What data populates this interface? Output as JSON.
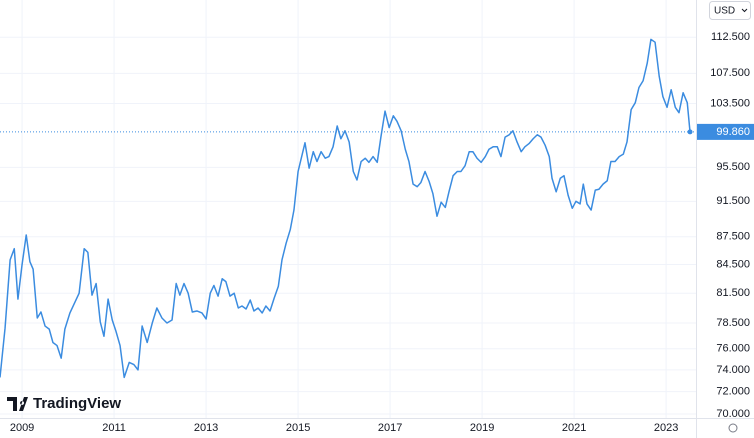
{
  "chart_data": {
    "type": "line",
    "currency": "USD",
    "watermark": "TradingView",
    "color": "#3b8ce0",
    "log_scale": true,
    "grid": true,
    "last_value_label": "99.860",
    "x": [
      2008.52,
      2008.63,
      2008.74,
      2008.83,
      2008.91,
      2009.0,
      2009.09,
      2009.17,
      2009.24,
      2009.33,
      2009.41,
      2009.5,
      2009.59,
      2009.67,
      2009.76,
      2009.85,
      2009.93,
      2010.04,
      2010.13,
      2010.24,
      2010.35,
      2010.43,
      2010.52,
      2010.61,
      2010.7,
      2010.78,
      2010.87,
      2010.96,
      2011.04,
      2011.13,
      2011.22,
      2011.33,
      2011.43,
      2011.52,
      2011.61,
      2011.72,
      2011.83,
      2011.93,
      2012.04,
      2012.15,
      2012.26,
      2012.35,
      2012.43,
      2012.52,
      2012.61,
      2012.7,
      2012.8,
      2012.91,
      2013.0,
      2013.09,
      2013.17,
      2013.26,
      2013.35,
      2013.43,
      2013.52,
      2013.61,
      2013.7,
      2013.78,
      2013.87,
      2013.96,
      2014.04,
      2014.13,
      2014.22,
      2014.3,
      2014.39,
      2014.48,
      2014.57,
      2014.65,
      2014.74,
      2014.83,
      2014.91,
      2015.0,
      2015.15,
      2015.24,
      2015.33,
      2015.41,
      2015.5,
      2015.59,
      2015.67,
      2015.76,
      2015.85,
      2015.93,
      2016.02,
      2016.11,
      2016.2,
      2016.28,
      2016.37,
      2016.46,
      2016.54,
      2016.63,
      2016.72,
      2016.8,
      2016.89,
      2016.98,
      2017.07,
      2017.15,
      2017.24,
      2017.33,
      2017.41,
      2017.5,
      2017.59,
      2017.67,
      2017.76,
      2017.85,
      2017.93,
      2018.02,
      2018.11,
      2018.2,
      2018.28,
      2018.37,
      2018.46,
      2018.54,
      2018.63,
      2018.72,
      2018.8,
      2018.89,
      2018.98,
      2019.07,
      2019.15,
      2019.24,
      2019.33,
      2019.41,
      2019.5,
      2019.59,
      2019.67,
      2019.76,
      2019.85,
      2019.93,
      2020.02,
      2020.11,
      2020.2,
      2020.28,
      2020.37,
      2020.46,
      2020.52,
      2020.61,
      2020.7,
      2020.78,
      2020.87,
      2020.96,
      2021.04,
      2021.13,
      2021.2,
      2021.28,
      2021.37,
      2021.46,
      2021.54,
      2021.63,
      2021.72,
      2021.8,
      2021.89,
      2021.98,
      2022.07,
      2022.15,
      2022.24,
      2022.33,
      2022.41,
      2022.5,
      2022.59,
      2022.67,
      2022.76,
      2022.85,
      2022.93,
      2023.02,
      2023.11,
      2023.2,
      2023.28,
      2023.37,
      2023.46,
      2023.52
    ],
    "values": [
      73.3,
      78.0,
      85.0,
      86.2,
      80.9,
      84.5,
      87.7,
      84.8,
      84.0,
      79.0,
      79.6,
      78.2,
      77.9,
      76.6,
      76.3,
      75.1,
      77.9,
      79.5,
      80.4,
      81.5,
      86.2,
      85.8,
      81.3,
      82.5,
      78.6,
      77.2,
      80.9,
      78.8,
      77.7,
      76.3,
      73.3,
      74.7,
      74.5,
      74.0,
      78.2,
      76.6,
      78.5,
      80.0,
      79.0,
      78.5,
      78.8,
      82.5,
      81.3,
      82.5,
      81.5,
      79.6,
      79.7,
      79.5,
      78.9,
      81.5,
      82.3,
      81.2,
      83.0,
      82.7,
      81.2,
      81.5,
      80.0,
      80.2,
      79.9,
      80.8,
      79.7,
      80.0,
      79.5,
      80.2,
      79.7,
      81.0,
      82.2,
      85.0,
      86.8,
      88.3,
      90.5,
      95.0,
      98.5,
      95.4,
      97.4,
      96.2,
      97.4,
      96.6,
      96.8,
      98.0,
      100.6,
      99.0,
      100.0,
      98.6,
      95.0,
      94.0,
      96.2,
      96.6,
      96.1,
      96.8,
      96.1,
      99.2,
      102.5,
      100.4,
      101.9,
      101.2,
      100.0,
      97.7,
      96.2,
      93.5,
      93.2,
      93.7,
      95.0,
      93.8,
      92.4,
      89.8,
      91.4,
      90.8,
      92.6,
      94.5,
      95.0,
      95.0,
      95.7,
      97.4,
      97.4,
      96.6,
      96.1,
      96.8,
      97.7,
      98.0,
      98.0,
      96.8,
      99.2,
      99.5,
      100.0,
      98.6,
      97.4,
      98.0,
      98.4,
      99.0,
      99.5,
      99.2,
      98.2,
      96.8,
      94.2,
      92.6,
      94.2,
      94.5,
      92.2,
      90.7,
      91.5,
      91.2,
      93.5,
      91.2,
      90.5,
      92.8,
      92.9,
      93.5,
      93.9,
      96.2,
      96.2,
      96.8,
      97.1,
      98.6,
      102.7,
      103.6,
      105.6,
      106.5,
      108.9,
      112.2,
      111.8,
      107.1,
      104.4,
      103.0,
      105.3,
      103.0,
      102.3,
      104.9,
      103.6,
      99.86
    ],
    "xlim": [
      2008.52,
      2023.65
    ],
    "xticks": [
      2009,
      2011,
      2013,
      2015,
      2017,
      2019,
      2021,
      2023
    ],
    "ylim": [
      69.65,
      117.9
    ],
    "yticks": [
      {
        "value": 70,
        "label": "70.000"
      },
      {
        "value": 72,
        "label": "72.000"
      },
      {
        "value": 74,
        "label": "74.000"
      },
      {
        "value": 76,
        "label": "76.000"
      },
      {
        "value": 78.5,
        "label": "78.500"
      },
      {
        "value": 81.5,
        "label": "81.500"
      },
      {
        "value": 84.5,
        "label": "84.500"
      },
      {
        "value": 87.5,
        "label": "87.500"
      },
      {
        "value": 91.5,
        "label": "91.500"
      },
      {
        "value": 95.5,
        "label": "95.500"
      },
      {
        "value": 103.5,
        "label": "103.500"
      },
      {
        "value": 107.5,
        "label": "107.500"
      },
      {
        "value": 112.5,
        "label": "112.500"
      }
    ]
  }
}
